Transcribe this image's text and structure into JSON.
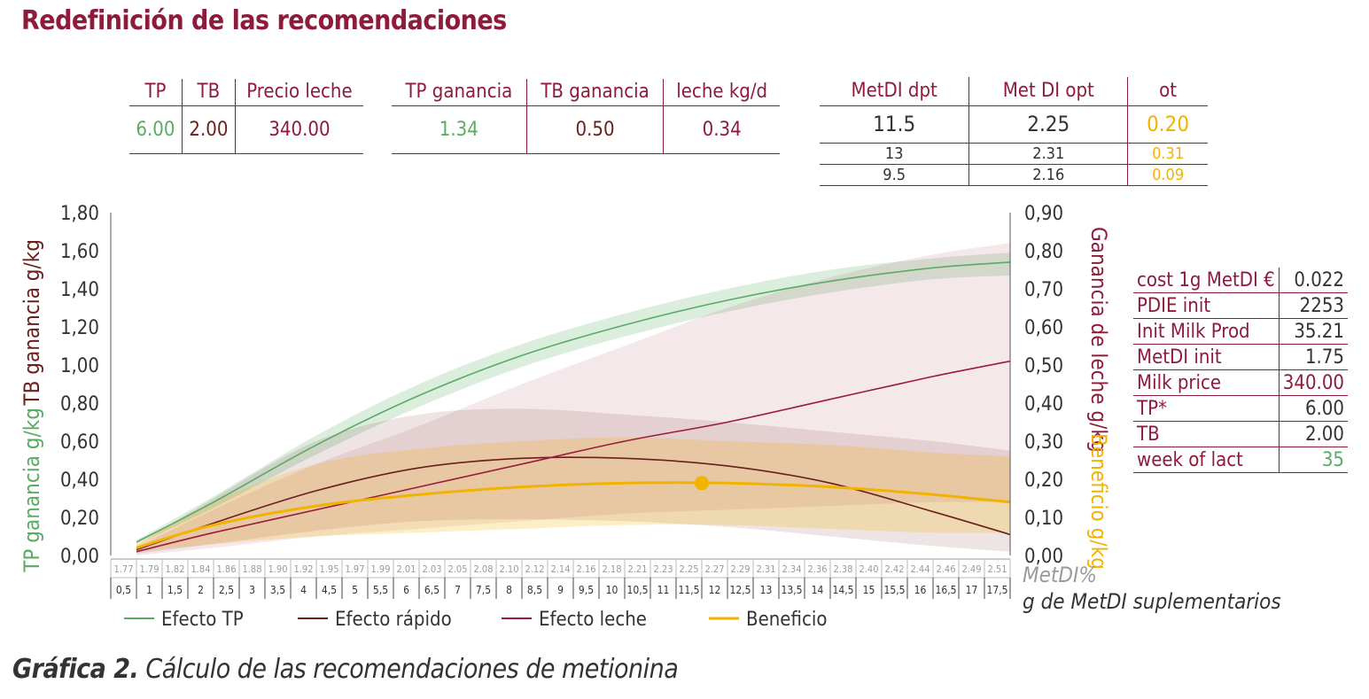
{
  "title": "Redefinición de las recomendaciones",
  "table1": {
    "headers": [
      "TP",
      "TB",
      "Precio leche"
    ],
    "values": [
      "6.00",
      "2.00",
      "340.00"
    ]
  },
  "table2": {
    "headers": [
      "TP ganancia",
      "TB ganancia",
      "leche kg/d"
    ],
    "values": [
      "1.34",
      "0.50",
      "0.34"
    ]
  },
  "table3": {
    "headers": [
      "MetDI dpt",
      "Met DI opt",
      "ot"
    ],
    "rows": [
      [
        "11.5",
        "2.25",
        "0.20"
      ],
      [
        "13",
        "2.31",
        "0.31"
      ],
      [
        "9.5",
        "2.16",
        "0.09"
      ]
    ]
  },
  "side_table": [
    {
      "label": "cost 1g MetDI €",
      "value": "0.022"
    },
    {
      "label": "PDIE init",
      "value": "2253"
    },
    {
      "label": "Init Milk Prod",
      "value": "35.21"
    },
    {
      "label": "MetDI init",
      "value": "1.75"
    },
    {
      "label": "Milk price",
      "value": "340.00"
    },
    {
      "label": "TP*",
      "value": "6.00"
    },
    {
      "label": "TB",
      "value": "2.00"
    },
    {
      "label": "week of lact",
      "value": "35"
    }
  ],
  "colors": {
    "brand": "#8e1b3c",
    "tp": "#5aab63",
    "rapido": "#6b1f1a",
    "leche": "#9b1b3e",
    "beneficio": "#f2b300",
    "gray": "#9a9a9a"
  },
  "chart_data": {
    "type": "line",
    "xlabel_top": "MetDI%",
    "xlabel_bottom": "g de MetDI suplementarios",
    "ylabel_left_top": "TB ganancia g/kg",
    "ylabel_left_bottom": "TP ganancia g/kg",
    "ylabel_right_top": "Ganancia de leche g/kg",
    "ylabel_right_bottom": "Beneficio g/kg",
    "ylim_left": [
      0,
      1.8
    ],
    "ylim_right": [
      0,
      0.9
    ],
    "left_ticks": [
      "0,00",
      "0,20",
      "0,40",
      "0,60",
      "0,80",
      "1,00",
      "1,20",
      "1,40",
      "1,60",
      "1,80"
    ],
    "right_ticks": [
      "0,00",
      "0,10",
      "0,20",
      "0,30",
      "0,40",
      "0,50",
      "0,60",
      "0,70",
      "0,80",
      "0,90"
    ],
    "x_metdi_pct": [
      "1.77",
      "1.79",
      "1.82",
      "1.84",
      "1.86",
      "1.88",
      "1.90",
      "1.92",
      "1.95",
      "1.97",
      "1.99",
      "2.01",
      "2.03",
      "2.05",
      "2.08",
      "2.10",
      "2.12",
      "2.14",
      "2.16",
      "2.18",
      "2.21",
      "2.23",
      "2.25",
      "2.27",
      "2.29",
      "2.31",
      "2.34",
      "2.36",
      "2.38",
      "2.40",
      "2.42",
      "2.44",
      "2.46",
      "2.49",
      "2.51"
    ],
    "x_grams": [
      "0,5",
      "1",
      "1,5",
      "2",
      "2,5",
      "3",
      "3,5",
      "4",
      "4,5",
      "5",
      "5,5",
      "6",
      "6,5",
      "7",
      "7,5",
      "8",
      "8,5",
      "9",
      "9,5",
      "10",
      "10,5",
      "11",
      "11,5",
      "12",
      "12,5",
      "13",
      "13,5",
      "14",
      "14,5",
      "15",
      "15,5",
      "16",
      "16,5",
      "17",
      "17,5"
    ],
    "x": [
      0.5,
      2,
      4,
      6,
      8,
      10,
      12,
      14,
      16,
      17.5
    ],
    "series": [
      {
        "name": "Efecto TP",
        "axis": "left",
        "values": [
          0.07,
          0.28,
          0.58,
          0.84,
          1.05,
          1.21,
          1.34,
          1.44,
          1.51,
          1.54
        ],
        "band_lower": [
          0.06,
          0.25,
          0.53,
          0.78,
          0.99,
          1.15,
          1.28,
          1.38,
          1.45,
          1.47
        ],
        "band_upper": [
          0.08,
          0.31,
          0.63,
          0.9,
          1.11,
          1.27,
          1.4,
          1.5,
          1.56,
          1.59
        ]
      },
      {
        "name": "Efecto rápido",
        "axis": "left",
        "values": [
          0.03,
          0.17,
          0.34,
          0.46,
          0.51,
          0.51,
          0.47,
          0.38,
          0.23,
          0.11
        ],
        "band_lower": [
          0.01,
          0.06,
          0.13,
          0.18,
          0.19,
          0.18,
          0.15,
          0.1,
          0.05,
          0.02
        ],
        "band_upper": [
          0.05,
          0.3,
          0.6,
          0.74,
          0.77,
          0.74,
          0.7,
          0.65,
          0.6,
          0.55
        ]
      },
      {
        "name": "Efecto leche",
        "axis": "right",
        "values": [
          0.01,
          0.06,
          0.12,
          0.18,
          0.24,
          0.3,
          0.35,
          0.41,
          0.47,
          0.51
        ],
        "band_lower": [
          0.0,
          0.02,
          0.05,
          0.07,
          0.09,
          0.11,
          0.12,
          0.13,
          0.14,
          0.14
        ],
        "band_upper": [
          0.02,
          0.12,
          0.24,
          0.34,
          0.45,
          0.55,
          0.65,
          0.73,
          0.79,
          0.82
        ]
      },
      {
        "name": "Beneficio",
        "axis": "right",
        "values": [
          0.02,
          0.08,
          0.13,
          0.16,
          0.18,
          0.19,
          0.19,
          0.18,
          0.16,
          0.14
        ],
        "band_lower": [
          0.01,
          0.03,
          0.05,
          0.06,
          0.07,
          0.08,
          0.08,
          0.07,
          0.06,
          0.06
        ],
        "band_upper": [
          0.03,
          0.14,
          0.24,
          0.28,
          0.3,
          0.31,
          0.3,
          0.29,
          0.27,
          0.26
        ]
      }
    ],
    "optimum_point": {
      "x": 11.5,
      "y": 0.19,
      "axis": "right"
    },
    "legend_position": "bottom"
  }
}
